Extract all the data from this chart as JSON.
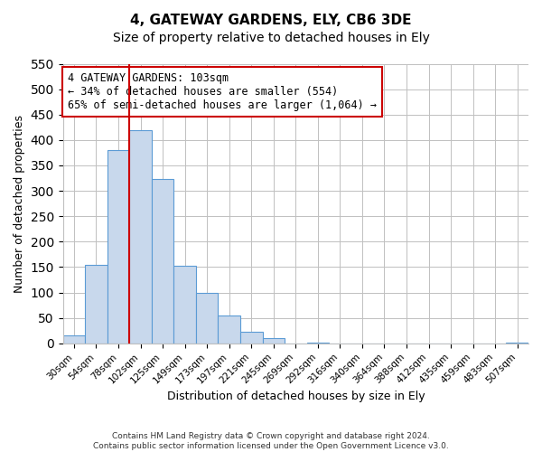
{
  "title": "4, GATEWAY GARDENS, ELY, CB6 3DE",
  "subtitle": "Size of property relative to detached houses in Ely",
  "xlabel": "Distribution of detached houses by size in Ely",
  "ylabel": "Number of detached properties",
  "bin_labels": [
    "30sqm",
    "54sqm",
    "78sqm",
    "102sqm",
    "125sqm",
    "149sqm",
    "173sqm",
    "197sqm",
    "221sqm",
    "245sqm",
    "269sqm",
    "292sqm",
    "316sqm",
    "340sqm",
    "364sqm",
    "388sqm",
    "412sqm",
    "435sqm",
    "459sqm",
    "483sqm",
    "507sqm"
  ],
  "bar_heights": [
    15,
    155,
    380,
    420,
    323,
    153,
    100,
    54,
    22,
    11,
    0,
    2,
    0,
    0,
    0,
    0,
    0,
    0,
    0,
    0,
    2
  ],
  "bar_color": "#c8d8ec",
  "bar_edge_color": "#5b9bd5",
  "vline_x_index": 3,
  "vline_color": "#cc0000",
  "annotation_line1": "4 GATEWAY GARDENS: 103sqm",
  "annotation_line2": "← 34% of detached houses are smaller (554)",
  "annotation_line3": "65% of semi-detached houses are larger (1,064) →",
  "annotation_box_edge_color": "#cc0000",
  "footer_text": "Contains HM Land Registry data © Crown copyright and database right 2024.\nContains public sector information licensed under the Open Government Licence v3.0.",
  "ylim": [
    0,
    550
  ],
  "yticks": [
    0,
    50,
    100,
    150,
    200,
    250,
    300,
    350,
    400,
    450,
    500,
    550
  ],
  "figsize": [
    6.0,
    5.0
  ],
  "dpi": 100
}
